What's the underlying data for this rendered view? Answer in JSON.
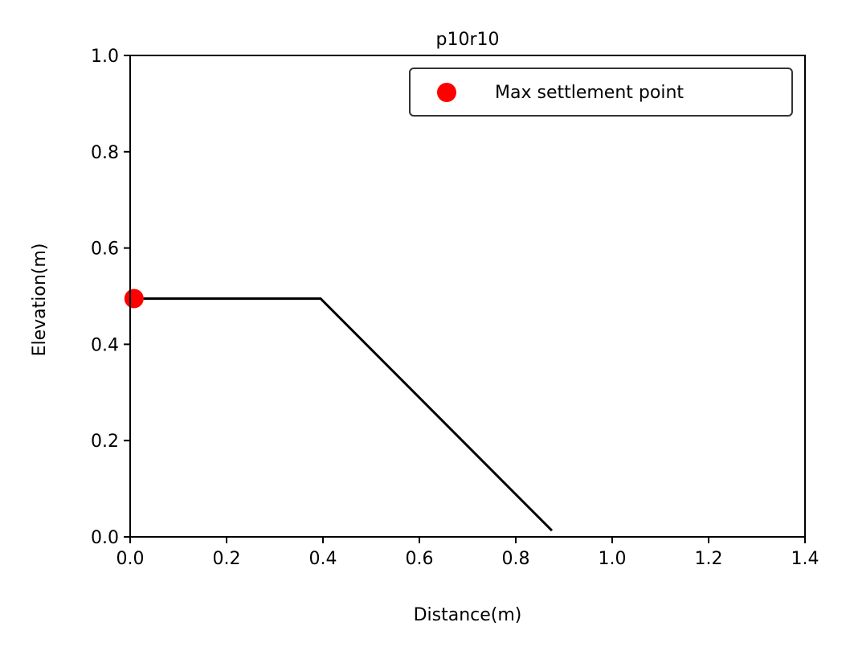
{
  "chart_data": {
    "type": "line",
    "title": "p10r10",
    "xlabel": "Distance(m)",
    "ylabel": "Elevation(m)",
    "xlim": [
      0,
      1.4
    ],
    "ylim": [
      0,
      1.0
    ],
    "xticks": [
      "0.0",
      "0.2",
      "0.4",
      "0.6",
      "0.8",
      "1.0",
      "1.2",
      "1.4"
    ],
    "yticks": [
      "0.0",
      "0.2",
      "0.4",
      "0.6",
      "0.8",
      "1.0"
    ],
    "grid": false,
    "legend_position": "top-right",
    "series": [
      {
        "type": "line",
        "color": "#000000",
        "x": [
          0.0,
          0.395,
          0.875
        ],
        "y": [
          0.495,
          0.495,
          0.013
        ]
      },
      {
        "type": "scatter",
        "name": "Max settlement point",
        "color": "#ff0000",
        "x": [
          0.008
        ],
        "y": [
          0.495
        ]
      }
    ]
  }
}
